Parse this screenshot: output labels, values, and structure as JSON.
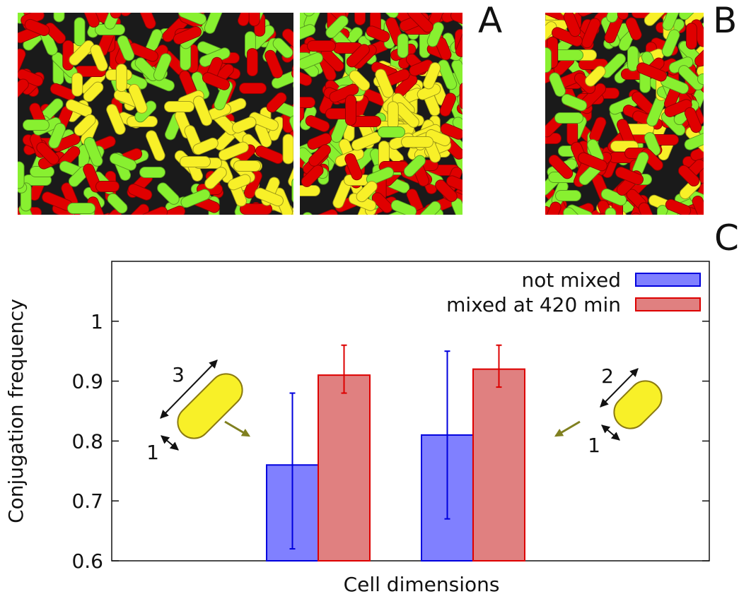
{
  "panel_labels": {
    "a": "A",
    "b": "B",
    "c": "C"
  },
  "images": {
    "panel_a_left": "bacterial-colony-simulation",
    "panel_a_right": "bacterial-colony-simulation",
    "panel_b": "bacterial-colony-simulation"
  },
  "colors": {
    "cell_red": "#e00000",
    "cell_green": "#88f030",
    "cell_yellow": "#f8f028",
    "not_mixed": "#8080ff",
    "not_mixed_edge": "#0000dd",
    "mixed": "#e08080",
    "mixed_edge": "#dd0000",
    "arrow_olive": "#808020"
  },
  "insets": {
    "left": {
      "length_label": "3",
      "width_label": "1",
      "icon": "elongated-cell-icon"
    },
    "right": {
      "length_label": "2",
      "width_label": "1",
      "icon": "short-cell-icon"
    }
  },
  "chart_data": {
    "type": "bar",
    "title": "",
    "xlabel": "Cell dimensions",
    "ylabel": "Conjugation frequency",
    "ylim": [
      0.6,
      1.1
    ],
    "yticks": [
      0.6,
      0.7,
      0.8,
      0.9,
      1
    ],
    "ytick_labels": [
      "0.6",
      "0.7",
      "0.8",
      "0.9",
      "1"
    ],
    "grid": false,
    "legend_position": "top-right",
    "groups": [
      "3x1",
      "2x1"
    ],
    "series": [
      {
        "name": "not mixed",
        "values": [
          0.76,
          0.81
        ],
        "err_low": [
          0.62,
          0.67
        ],
        "err_high": [
          0.88,
          0.95
        ]
      },
      {
        "name": "mixed at 420 min",
        "values": [
          0.91,
          0.92
        ],
        "err_low": [
          0.88,
          0.89
        ],
        "err_high": [
          0.96,
          0.96
        ]
      }
    ]
  }
}
